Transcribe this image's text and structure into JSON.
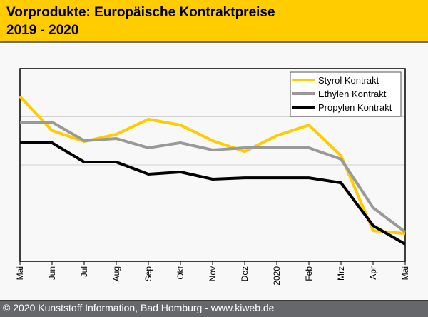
{
  "header": {
    "title_line1": "Vorprodukte: Europäische Kontraktpreise",
    "title_line2": "2019 - 2020"
  },
  "footer": {
    "text": "© 2020 Kunststoff Information, Bad Homburg - www.kiweb.de"
  },
  "chart_data": {
    "type": "line",
    "title": "Vorprodukte: Europäische Kontraktpreise 2019 - 2020",
    "xlabel": "",
    "ylabel": "",
    "categories": [
      "Mai",
      "Jun",
      "Jul",
      "Aug",
      "Sep",
      "Okt",
      "Nov",
      "Dez",
      "2020",
      "Feb",
      "Mrz",
      "Apr",
      "Mai"
    ],
    "ylim": [
      0,
      100
    ],
    "y_ticks_labeled": false,
    "gridlines": [
      25,
      50,
      75
    ],
    "grid": true,
    "legend_position": "top-right",
    "series": [
      {
        "name": "Styrol Kontrakt",
        "color": "#ffcc00",
        "values": [
          85.6,
          67.8,
          62.2,
          65.9,
          73.7,
          70.7,
          62.6,
          57.0,
          65.2,
          70.7,
          54.8,
          15.9,
          14.4
        ]
      },
      {
        "name": "Ethylen Kontrakt",
        "color": "#999999",
        "values": [
          72.2,
          72.2,
          62.6,
          63.7,
          58.9,
          61.5,
          57.8,
          58.9,
          58.9,
          58.9,
          53.0,
          27.8,
          15.2
        ]
      },
      {
        "name": "Propylen Kontrakt",
        "color": "#000000",
        "values": [
          61.5,
          61.5,
          51.5,
          51.5,
          45.2,
          46.3,
          42.6,
          43.3,
          43.3,
          43.3,
          40.7,
          18.5,
          8.9
        ]
      }
    ]
  }
}
